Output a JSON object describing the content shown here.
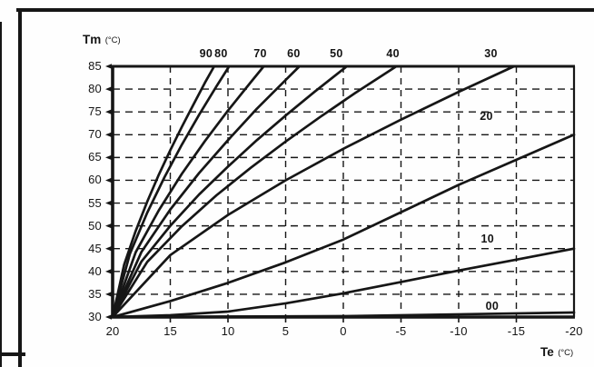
{
  "axis_titles": {
    "y": {
      "main": "Tm",
      "unit": "(°C)"
    },
    "x": {
      "main": "Te",
      "unit": "(°C)"
    }
  },
  "chart_data": {
    "type": "line",
    "title": "",
    "xlabel": "Te (°C)",
    "ylabel": "Tm (°C)",
    "grid": "dashed",
    "legend_position": "inline-curve-labels",
    "x_axis": {
      "max": 20,
      "min": -20,
      "reversed": true,
      "tick_values": [
        20,
        15,
        10,
        5,
        0,
        -5,
        -10,
        -15,
        -20
      ],
      "tick_labels": [
        "20",
        "15",
        "10",
        "5",
        "0",
        "-5",
        "-10",
        "-15",
        "-20"
      ],
      "grid_values": [
        15,
        10,
        5,
        0,
        -5,
        -10,
        -15
      ]
    },
    "y_axis": {
      "min": 30,
      "max": 85,
      "tick_values": [
        85,
        80,
        75,
        70,
        65,
        60,
        55,
        50,
        45,
        40,
        35,
        30
      ],
      "tick_labels": [
        "85",
        "80",
        "75",
        "70",
        "65",
        "60",
        "55",
        "50",
        "45",
        "40",
        "35",
        "30"
      ],
      "grid_values": [
        80,
        75,
        70,
        65,
        60,
        55,
        50,
        45,
        40,
        35
      ]
    },
    "series": [
      {
        "name": "90",
        "points": [
          [
            20,
            30
          ],
          [
            19,
            41.5
          ],
          [
            18,
            48.9
          ],
          [
            17,
            55.3
          ],
          [
            16,
            61.2
          ],
          [
            15,
            66.6
          ],
          [
            14,
            71.7
          ],
          [
            13,
            76.6
          ],
          [
            12,
            81.4
          ],
          [
            11.2,
            85
          ]
        ]
      },
      {
        "name": "80",
        "points": [
          [
            20,
            30
          ],
          [
            18.5,
            43.9
          ],
          [
            17,
            52.9
          ],
          [
            15.5,
            60.7
          ],
          [
            14,
            67.8
          ],
          [
            12.5,
            74.4
          ],
          [
            11,
            80.6
          ],
          [
            9.9,
            85
          ]
        ]
      },
      {
        "name": "70",
        "points": [
          [
            20,
            30
          ],
          [
            18,
            44.2
          ],
          [
            16,
            53.4
          ],
          [
            14,
            61.4
          ],
          [
            12,
            68.6
          ],
          [
            10,
            75.3
          ],
          [
            8,
            81.6
          ],
          [
            6.9,
            85
          ]
        ]
      },
      {
        "name": "60",
        "points": [
          [
            20,
            30
          ],
          [
            17.5,
            44.3
          ],
          [
            15,
            53.6
          ],
          [
            12.5,
            61.6
          ],
          [
            10,
            68.8
          ],
          [
            7.5,
            75.7
          ],
          [
            5,
            82
          ],
          [
            3.8,
            85
          ]
        ]
      },
      {
        "name": "50",
        "points": [
          [
            20,
            30
          ],
          [
            17.5,
            42.2
          ],
          [
            15,
            50
          ],
          [
            12.5,
            56.9
          ],
          [
            10,
            63
          ],
          [
            7.5,
            68.8
          ],
          [
            5,
            74.2
          ],
          [
            2.5,
            79.4
          ],
          [
            -0.3,
            85
          ]
        ]
      },
      {
        "name": "40",
        "points": [
          [
            20,
            30
          ],
          [
            17,
            42.1
          ],
          [
            14,
            49.9
          ],
          [
            11,
            56.7
          ],
          [
            8,
            62.8
          ],
          [
            5,
            68.5
          ],
          [
            2,
            73.9
          ],
          [
            -1,
            79.1
          ],
          [
            -4.6,
            85
          ]
        ]
      },
      {
        "name": "30",
        "points": [
          [
            20,
            30
          ],
          [
            15,
            43.6
          ],
          [
            10,
            52.4
          ],
          [
            5,
            60
          ],
          [
            0,
            66.9
          ],
          [
            -5,
            73.3
          ],
          [
            -10,
            79.4
          ],
          [
            -14.8,
            85
          ]
        ]
      },
      {
        "name": "20",
        "points": [
          [
            20,
            30
          ],
          [
            15,
            33.5
          ],
          [
            10,
            37.5
          ],
          [
            5,
            42
          ],
          [
            0,
            47
          ],
          [
            -5,
            53
          ],
          [
            -10,
            59
          ],
          [
            -15,
            64.5
          ],
          [
            -20,
            70
          ]
        ]
      },
      {
        "name": "10",
        "points": [
          [
            20,
            30
          ],
          [
            15,
            30.4
          ],
          [
            10,
            31.2
          ],
          [
            5,
            33
          ],
          [
            0,
            35.2
          ],
          [
            -5,
            37.7
          ],
          [
            -10,
            40.2
          ],
          [
            -15,
            42.6
          ],
          [
            -20,
            45
          ]
        ]
      },
      {
        "name": "00",
        "points": [
          [
            20,
            30
          ],
          [
            0,
            30.2
          ],
          [
            -20,
            31
          ]
        ]
      }
    ],
    "curve_labels_top": [
      {
        "text": "90",
        "te": 11.9
      },
      {
        "text": "80",
        "te": 10.6
      },
      {
        "text": "70",
        "te": 7.2
      },
      {
        "text": "60",
        "te": 4.3
      },
      {
        "text": "50",
        "te": 0.6
      },
      {
        "text": "40",
        "te": -4.3
      },
      {
        "text": "30",
        "te": -12.8
      }
    ],
    "curve_labels_inplot": [
      {
        "text": "20",
        "te": -12.4,
        "tm": 74.0
      },
      {
        "text": "10",
        "te": -12.5,
        "tm": 47.1
      },
      {
        "text": "00",
        "te": -12.9,
        "tm": 32.4
      }
    ],
    "line_color": "#161616"
  }
}
